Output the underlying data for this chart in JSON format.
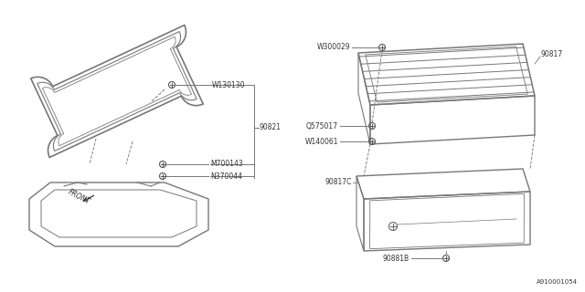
{
  "diagram_number": "A910001054",
  "background_color": "#ffffff",
  "line_color": "#777777",
  "text_color": "#333333",
  "front_label": "FRONT",
  "parts": {
    "W130130": {
      "label": "W130130"
    },
    "M700143": {
      "label": "M700143"
    },
    "N370044": {
      "label": "N370044"
    },
    "90821": {
      "label": "90821"
    },
    "W300029": {
      "label": "W300029"
    },
    "90817": {
      "label": "90817"
    },
    "Q575017": {
      "label": "Q575017"
    },
    "W140061": {
      "label": "W140061"
    },
    "90817C": {
      "label": "90817C"
    },
    "90881B": {
      "label": "90881B"
    }
  }
}
